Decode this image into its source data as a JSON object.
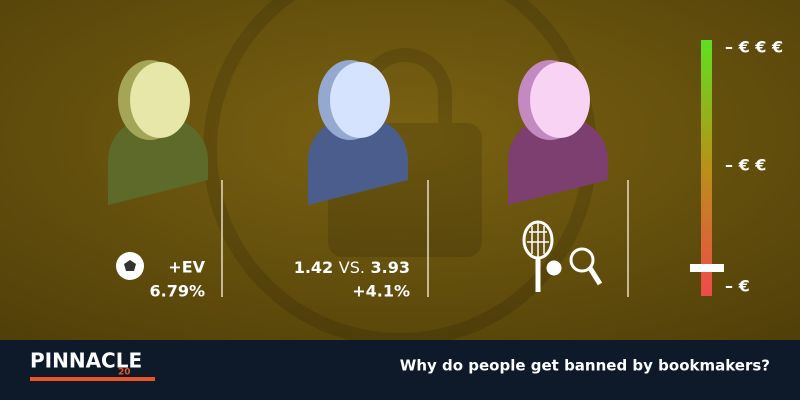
{
  "panels": [
    {
      "lines": [
        "+EV",
        "6.79%"
      ]
    },
    {
      "odds_low": "1.42",
      "versus": "VS.",
      "odds_high": "3.93",
      "change": "+4.1%"
    },
    {}
  ],
  "scale": {
    "labels": [
      "– € € €",
      "– € €",
      "– €"
    ]
  },
  "footer": {
    "logo": "PINNACLE",
    "badge": "20",
    "title": "Why do people get banned by bookmakers?"
  }
}
